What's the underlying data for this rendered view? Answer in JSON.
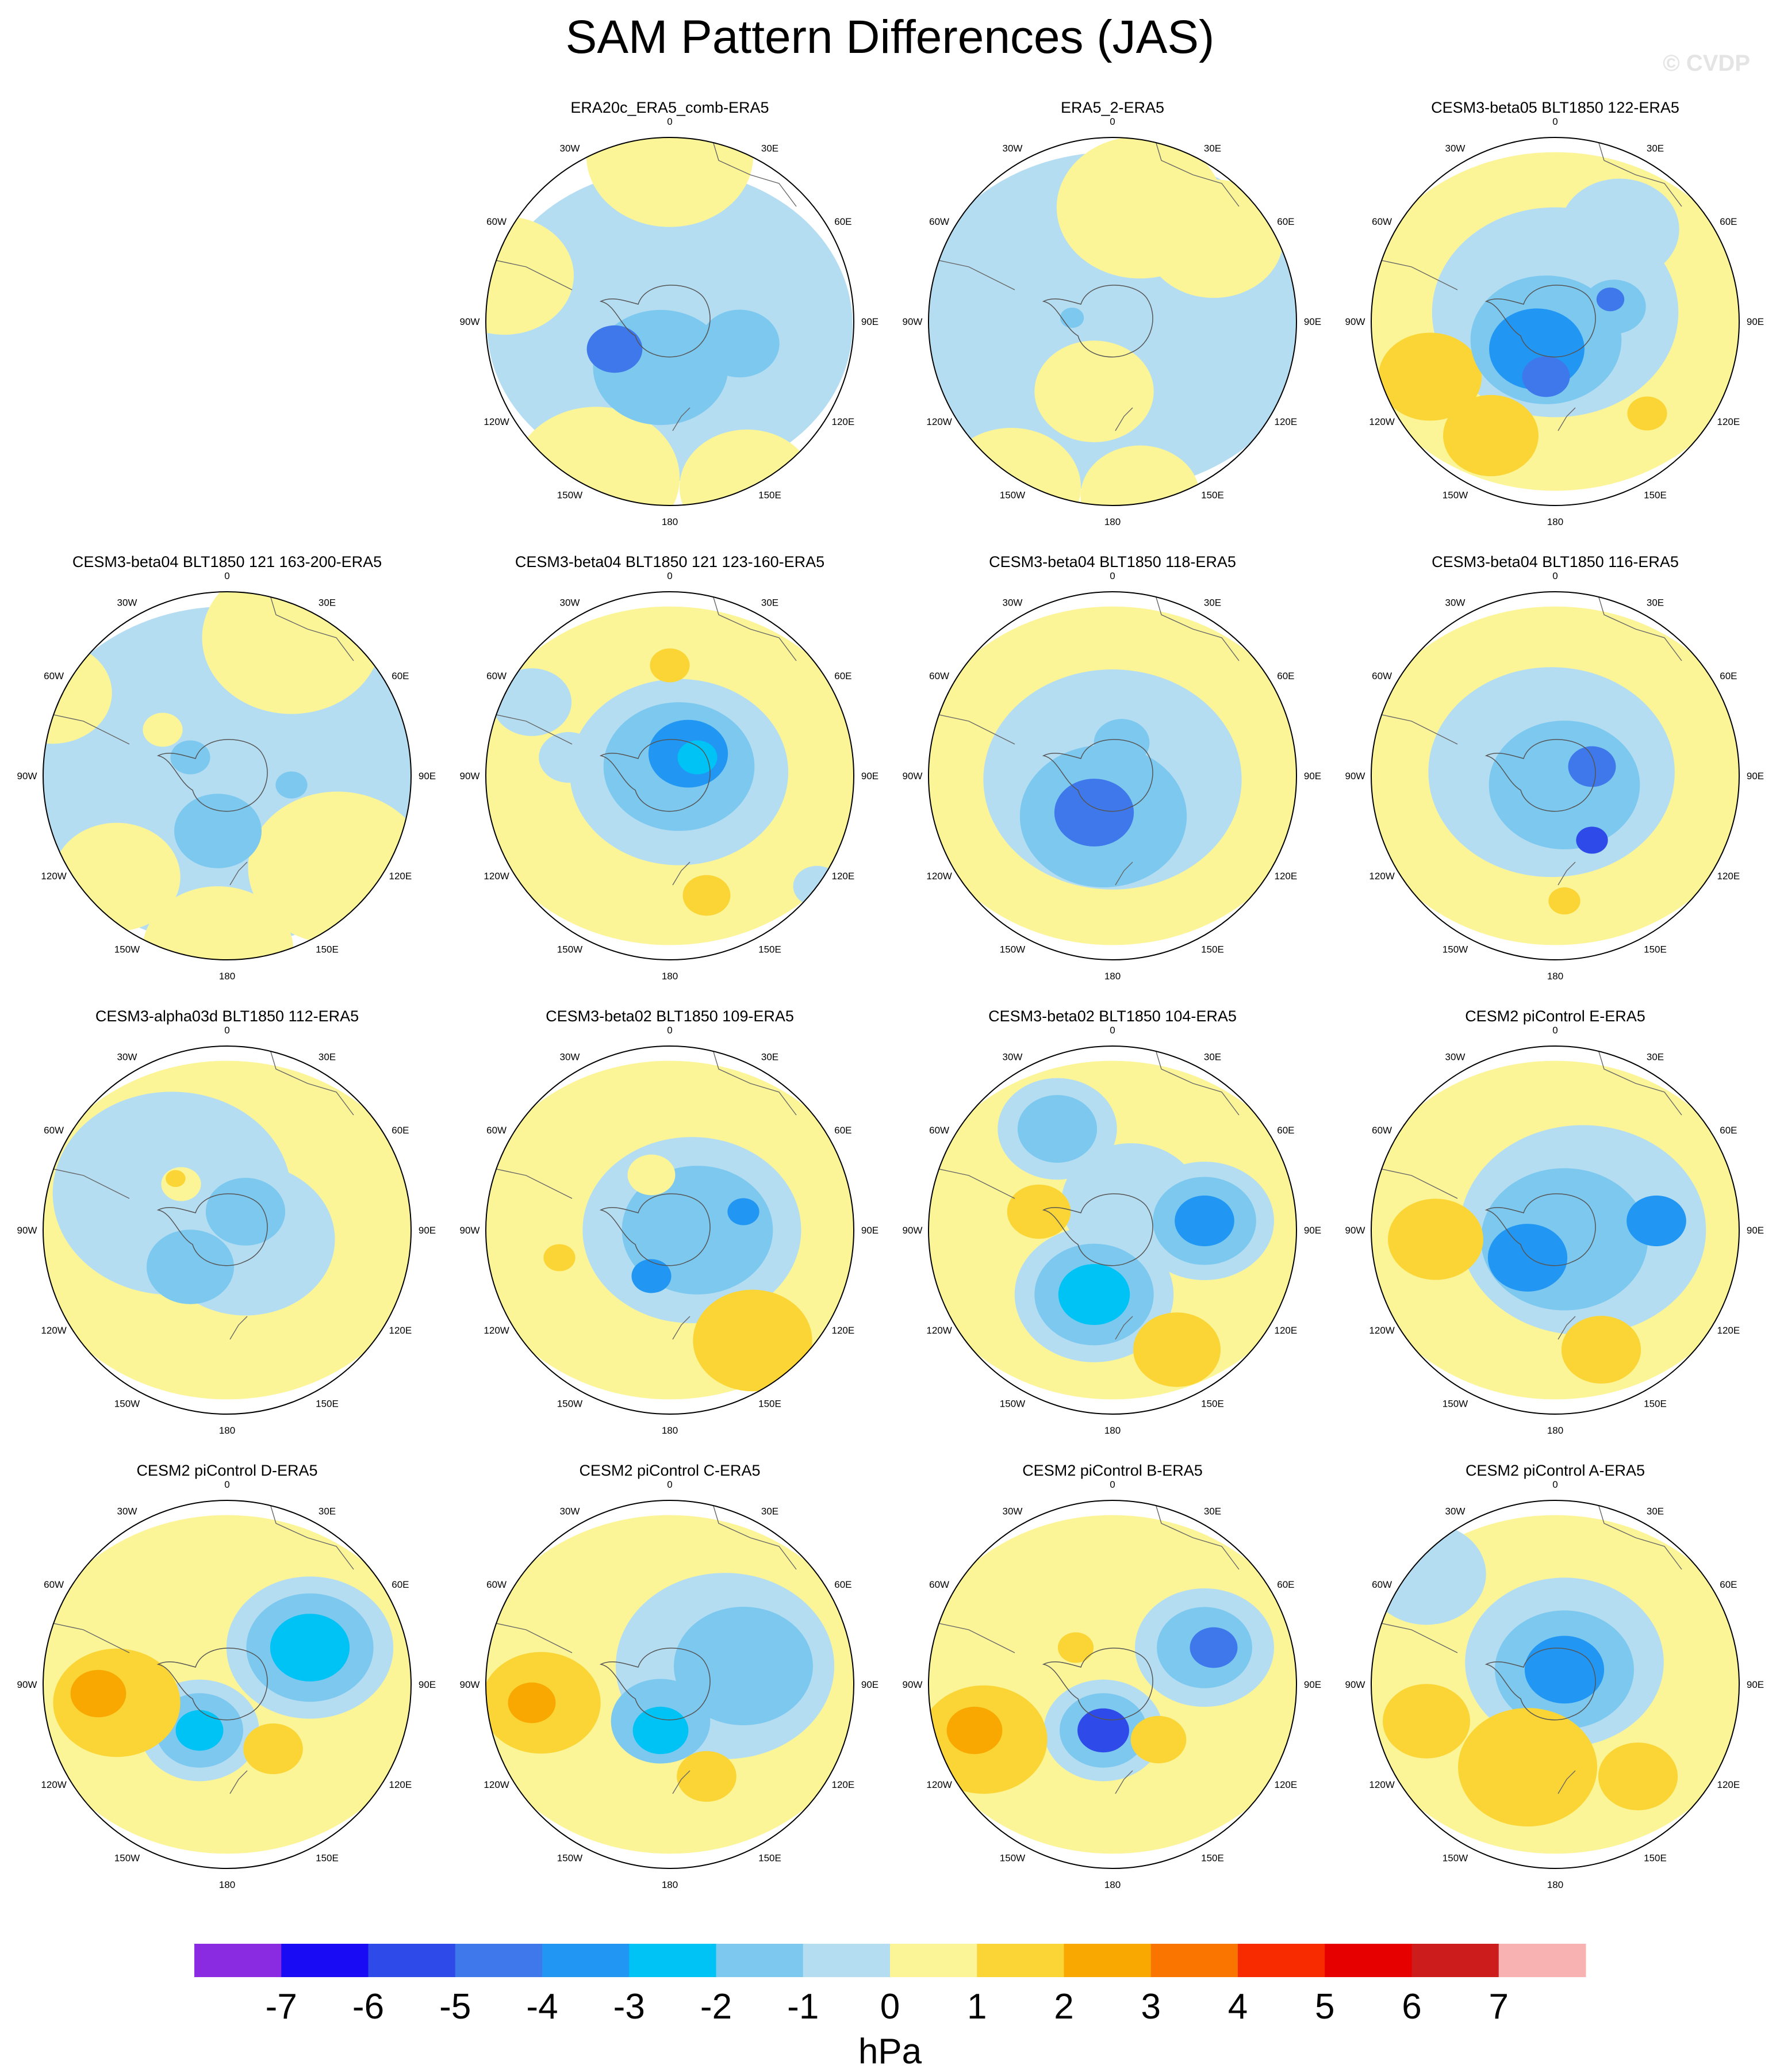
{
  "title": "SAM Pattern Differences (JAS)",
  "watermark": "© CVDP",
  "units": "hPa",
  "chart_data": {
    "type": "heatmap",
    "title": "SAM Pattern Differences (JAS)",
    "projection": "polar-stereographic, Southern Hemisphere",
    "colorbar": {
      "levels": [
        "-7",
        "-6",
        "-5",
        "-4",
        "-3",
        "-2",
        "-1",
        "0",
        "1",
        "2",
        "3",
        "4",
        "5",
        "6",
        "7"
      ],
      "colors": [
        "#8a2be2",
        "#1a0bf5",
        "#2e4ae8",
        "#3f78ea",
        "#2196f3",
        "#00c3f5",
        "#7cc8ef",
        "#b5ddf2",
        "#fbf598",
        "#fad535",
        "#f8a800",
        "#fa7400",
        "#f82a00",
        "#e60000",
        "#cd1c1c",
        "#f9b2b2"
      ],
      "label": "hPa"
    },
    "lon_labels": [
      "0",
      "30E",
      "60E",
      "90E",
      "120E",
      "150E",
      "180",
      "150W",
      "120W",
      "90W",
      "60W",
      "30W"
    ],
    "panels": [
      {
        "name": "ERA20c_ERA5_comb-ERA5",
        "blobs": [
          [
            0,
            -0.02,
            0.92,
            "#b5ddf2"
          ],
          [
            -0.4,
            -0.85,
            0.42,
            "#fbf598"
          ],
          [
            0.42,
            -0.9,
            0.34,
            "#fbf598"
          ],
          [
            0,
            0.9,
            0.42,
            "#fbf598"
          ],
          [
            -0.9,
            0.25,
            0.35,
            "#fbf598"
          ],
          [
            -0.05,
            -0.25,
            0.34,
            "#7cc8ef"
          ],
          [
            0.38,
            -0.12,
            0.2,
            "#7cc8ef"
          ],
          [
            -0.3,
            -0.15,
            0.14,
            "#3f78ea"
          ]
        ]
      },
      {
        "name": "ERA5_2-ERA5",
        "blobs": [
          [
            0,
            0,
            1.0,
            "#b5ddf2"
          ],
          [
            0.15,
            0.62,
            0.42,
            "#fbf598"
          ],
          [
            0.55,
            0.45,
            0.35,
            "#fbf598"
          ],
          [
            -0.1,
            -0.38,
            0.3,
            "#fbf598"
          ],
          [
            -0.55,
            -0.9,
            0.35,
            "#fbf598"
          ],
          [
            0.15,
            -0.95,
            0.3,
            "#fbf598"
          ],
          [
            -0.5,
            0.3,
            0.2,
            "#b5ddf2"
          ],
          [
            -0.22,
            0.02,
            0.06,
            "#7cc8ef"
          ]
        ]
      },
      {
        "name": "CESM3-beta05 BLT1850 122-ERA5",
        "blobs": [
          [
            0,
            0,
            1.0,
            "#fbf598"
          ],
          [
            0,
            0.05,
            0.62,
            "#b5ddf2"
          ],
          [
            0.35,
            0.5,
            0.3,
            "#b5ddf2"
          ],
          [
            -0.68,
            -0.3,
            0.26,
            "#fad535"
          ],
          [
            -0.35,
            -0.62,
            0.24,
            "#fad535"
          ],
          [
            0.5,
            -0.5,
            0.1,
            "#fad535"
          ],
          [
            -0.05,
            -0.1,
            0.38,
            "#7cc8ef"
          ],
          [
            0.32,
            0.08,
            0.16,
            "#7cc8ef"
          ],
          [
            -0.1,
            -0.15,
            0.24,
            "#2196f3"
          ],
          [
            -0.05,
            -0.3,
            0.12,
            "#3f78ea"
          ],
          [
            0.3,
            0.12,
            0.07,
            "#3f78ea"
          ]
        ]
      },
      {
        "name": "CESM3-beta04 BLT1850 121 163-200-ERA5",
        "blobs": [
          [
            0,
            0,
            1.0,
            "#b5ddf2"
          ],
          [
            0.35,
            0.75,
            0.45,
            "#fbf598"
          ],
          [
            0.6,
            -0.5,
            0.45,
            "#fbf598"
          ],
          [
            -0.6,
            -0.55,
            0.32,
            "#fbf598"
          ],
          [
            -0.05,
            -0.95,
            0.38,
            "#fbf598"
          ],
          [
            -0.95,
            0.45,
            0.3,
            "#fbf598"
          ],
          [
            -0.35,
            0.25,
            0.1,
            "#fbf598"
          ],
          [
            -0.05,
            -0.3,
            0.22,
            "#7cc8ef"
          ],
          [
            0.35,
            -0.05,
            0.08,
            "#7cc8ef"
          ],
          [
            -0.2,
            0.1,
            0.1,
            "#7cc8ef"
          ]
        ]
      },
      {
        "name": "CESM3-beta04 BLT1850 121 123-160-ERA5",
        "blobs": [
          [
            0,
            0,
            1.0,
            "#fbf598"
          ],
          [
            0.05,
            0.02,
            0.55,
            "#b5ddf2"
          ],
          [
            -0.75,
            0.4,
            0.2,
            "#b5ddf2"
          ],
          [
            -0.55,
            0.1,
            0.15,
            "#b5ddf2"
          ],
          [
            0.8,
            -0.6,
            0.12,
            "#b5ddf2"
          ],
          [
            0.05,
            0.05,
            0.38,
            "#7cc8ef"
          ],
          [
            0.1,
            0.12,
            0.2,
            "#2196f3"
          ],
          [
            0.15,
            0.1,
            0.1,
            "#00c3f5"
          ],
          [
            0,
            0.6,
            0.1,
            "#fad535"
          ],
          [
            0.2,
            -0.65,
            0.12,
            "#fad535"
          ]
        ]
      },
      {
        "name": "CESM3-beta04 BLT1850 118-ERA5",
        "blobs": [
          [
            0,
            0,
            1.0,
            "#fbf598"
          ],
          [
            0,
            -0.02,
            0.65,
            "#b5ddf2"
          ],
          [
            -0.05,
            -0.22,
            0.42,
            "#7cc8ef"
          ],
          [
            0.05,
            0.18,
            0.14,
            "#7cc8ef"
          ],
          [
            -0.1,
            -0.2,
            0.2,
            "#3f78ea"
          ]
        ]
      },
      {
        "name": "CESM3-beta04 BLT1850 116-ERA5",
        "blobs": [
          [
            0,
            0,
            1.0,
            "#fbf598"
          ],
          [
            -0.02,
            0.02,
            0.62,
            "#b5ddf2"
          ],
          [
            0.05,
            -0.05,
            0.38,
            "#7cc8ef"
          ],
          [
            0.2,
            0.05,
            0.12,
            "#3f78ea"
          ],
          [
            0.2,
            -0.35,
            0.08,
            "#2e4ae8"
          ],
          [
            0.05,
            -0.68,
            0.08,
            "#fad535"
          ]
        ]
      },
      {
        "name": "CESM3-alpha03d BLT1850 112-ERA5",
        "blobs": [
          [
            0,
            0,
            1.0,
            "#fbf598"
          ],
          [
            -0.3,
            0.2,
            0.6,
            "#b5ddf2"
          ],
          [
            0.1,
            -0.05,
            0.45,
            "#b5ddf2"
          ],
          [
            -0.2,
            -0.2,
            0.22,
            "#7cc8ef"
          ],
          [
            0.1,
            0.1,
            0.2,
            "#7cc8ef"
          ],
          [
            -0.25,
            0.25,
            0.1,
            "#fbf598"
          ],
          [
            -0.28,
            0.28,
            0.05,
            "#fad535"
          ]
        ]
      },
      {
        "name": "CESM3-beta02 BLT1850 109-ERA5",
        "blobs": [
          [
            0,
            0,
            1.0,
            "#fbf598"
          ],
          [
            0.12,
            0.0,
            0.55,
            "#b5ddf2"
          ],
          [
            0.15,
            0.0,
            0.38,
            "#7cc8ef"
          ],
          [
            -0.1,
            -0.25,
            0.1,
            "#2196f3"
          ],
          [
            0.4,
            0.1,
            0.08,
            "#2196f3"
          ],
          [
            0.45,
            -0.6,
            0.3,
            "#fad535"
          ],
          [
            -0.6,
            -0.15,
            0.08,
            "#fad535"
          ],
          [
            -0.1,
            0.3,
            0.12,
            "#fbf598"
          ]
        ]
      },
      {
        "name": "CESM3-beta02 BLT1850 104-ERA5",
        "blobs": [
          [
            0,
            0,
            1.0,
            "#fbf598"
          ],
          [
            -0.3,
            0.55,
            0.3,
            "#b5ddf2"
          ],
          [
            -0.3,
            0.55,
            0.2,
            "#7cc8ef"
          ],
          [
            0.1,
            0.15,
            0.35,
            "#b5ddf2"
          ],
          [
            0.5,
            0.05,
            0.35,
            "#b5ddf2"
          ],
          [
            0.5,
            0.05,
            0.26,
            "#7cc8ef"
          ],
          [
            0.5,
            0.05,
            0.15,
            "#2196f3"
          ],
          [
            -0.1,
            -0.35,
            0.4,
            "#b5ddf2"
          ],
          [
            -0.1,
            -0.35,
            0.3,
            "#7cc8ef"
          ],
          [
            -0.1,
            -0.35,
            0.18,
            "#00c3f5"
          ],
          [
            -0.4,
            0.1,
            0.16,
            "#fad535"
          ],
          [
            0.35,
            -0.65,
            0.22,
            "#fad535"
          ]
        ]
      },
      {
        "name": "CESM2 piControl E-ERA5",
        "blobs": [
          [
            0,
            0,
            1.0,
            "#fbf598"
          ],
          [
            0.15,
            0.0,
            0.62,
            "#b5ddf2"
          ],
          [
            0.05,
            -0.05,
            0.42,
            "#7cc8ef"
          ],
          [
            -0.15,
            -0.15,
            0.2,
            "#2196f3"
          ],
          [
            0.55,
            0.05,
            0.15,
            "#2196f3"
          ],
          [
            -0.65,
            -0.05,
            0.24,
            "#fad535"
          ],
          [
            0.25,
            -0.65,
            0.2,
            "#fad535"
          ]
        ]
      },
      {
        "name": "CESM2 piControl D-ERA5",
        "blobs": [
          [
            0,
            0,
            1.0,
            "#fbf598"
          ],
          [
            0.45,
            0.2,
            0.42,
            "#b5ddf2"
          ],
          [
            0.45,
            0.2,
            0.32,
            "#7cc8ef"
          ],
          [
            0.45,
            0.2,
            0.2,
            "#00c3f5"
          ],
          [
            -0.15,
            -0.25,
            0.3,
            "#b5ddf2"
          ],
          [
            -0.15,
            -0.25,
            0.22,
            "#7cc8ef"
          ],
          [
            -0.15,
            -0.25,
            0.12,
            "#00c3f5"
          ],
          [
            -0.6,
            -0.1,
            0.32,
            "#fad535"
          ],
          [
            -0.7,
            -0.05,
            0.14,
            "#f8a800"
          ],
          [
            0.25,
            -0.35,
            0.15,
            "#fad535"
          ]
        ]
      },
      {
        "name": "CESM2 piControl C-ERA5",
        "blobs": [
          [
            0,
            0,
            1.0,
            "#fbf598"
          ],
          [
            0.3,
            0.1,
            0.55,
            "#b5ddf2"
          ],
          [
            0.4,
            0.1,
            0.35,
            "#7cc8ef"
          ],
          [
            -0.05,
            -0.2,
            0.25,
            "#7cc8ef"
          ],
          [
            -0.05,
            -0.25,
            0.14,
            "#00c3f5"
          ],
          [
            -0.7,
            -0.1,
            0.3,
            "#fad535"
          ],
          [
            -0.75,
            -0.1,
            0.12,
            "#f8a800"
          ],
          [
            0.2,
            -0.5,
            0.15,
            "#fad535"
          ]
        ]
      },
      {
        "name": "CESM2 piControl B-ERA5",
        "blobs": [
          [
            0,
            0,
            1.0,
            "#fbf598"
          ],
          [
            0.5,
            0.2,
            0.35,
            "#b5ddf2"
          ],
          [
            0.5,
            0.2,
            0.24,
            "#7cc8ef"
          ],
          [
            0.55,
            0.2,
            0.12,
            "#3f78ea"
          ],
          [
            -0.05,
            -0.25,
            0.3,
            "#b5ddf2"
          ],
          [
            -0.05,
            -0.25,
            0.22,
            "#7cc8ef"
          ],
          [
            -0.05,
            -0.25,
            0.13,
            "#2e4ae8"
          ],
          [
            -0.7,
            -0.3,
            0.32,
            "#fad535"
          ],
          [
            -0.75,
            -0.25,
            0.14,
            "#f8a800"
          ],
          [
            0.25,
            -0.3,
            0.14,
            "#fad535"
          ],
          [
            -0.2,
            0.2,
            0.09,
            "#fad535"
          ]
        ]
      },
      {
        "name": "CESM2 piControl A-ERA5",
        "blobs": [
          [
            0,
            0,
            1.0,
            "#fbf598"
          ],
          [
            0.05,
            0.12,
            0.5,
            "#b5ddf2"
          ],
          [
            0.05,
            0.08,
            0.35,
            "#7cc8ef"
          ],
          [
            0.05,
            0.08,
            0.2,
            "#2196f3"
          ],
          [
            -0.15,
            -0.45,
            0.35,
            "#fad535"
          ],
          [
            0.45,
            -0.5,
            0.2,
            "#fad535"
          ],
          [
            -0.7,
            -0.2,
            0.22,
            "#fad535"
          ],
          [
            -0.7,
            0.6,
            0.3,
            "#b5ddf2"
          ]
        ]
      }
    ]
  }
}
